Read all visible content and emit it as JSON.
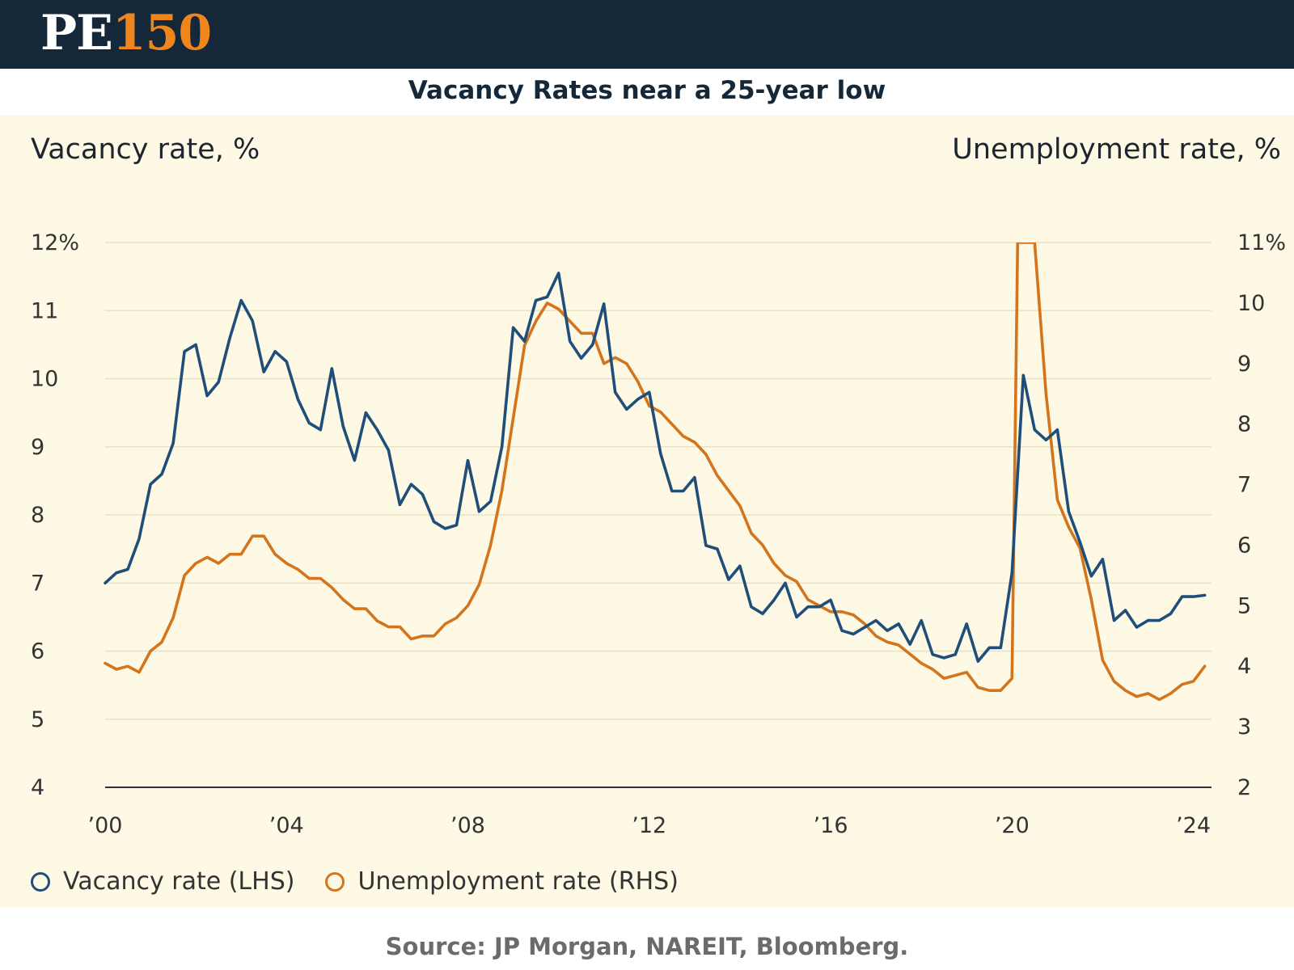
{
  "header": {
    "logo_pe": "PE",
    "logo_num": "150"
  },
  "title": "Vacancy Rates near a 25-year low",
  "source": "Source: JP Morgan, NAREIT, Bloomberg.",
  "colors": {
    "header_bg": "#14283a",
    "accent": "#f0851c",
    "panel_bg": "#fdf9e4",
    "vacancy": "#1f4e7a",
    "unemployment": "#d4741c"
  },
  "chart_data": {
    "type": "line",
    "left_axis_title": "Vacancy rate, %",
    "right_axis_title": "Unemployment rate, %",
    "x_ticks": [
      {
        "x": 2000,
        "label": "’00"
      },
      {
        "x": 2004,
        "label": "’04"
      },
      {
        "x": 2008,
        "label": "’08"
      },
      {
        "x": 2012,
        "label": "’12"
      },
      {
        "x": 2016,
        "label": "’16"
      },
      {
        "x": 2020,
        "label": "’20"
      },
      {
        "x": 2024,
        "label": "’24"
      }
    ],
    "xlim": [
      2000,
      2024.4
    ],
    "y_left": {
      "lim": [
        4,
        12
      ],
      "ticks": [
        {
          "v": 12,
          "label": "12%"
        },
        {
          "v": 11,
          "label": "11"
        },
        {
          "v": 10,
          "label": "10"
        },
        {
          "v": 9,
          "label": "9"
        },
        {
          "v": 8,
          "label": "8"
        },
        {
          "v": 7,
          "label": "7"
        },
        {
          "v": 6,
          "label": "6"
        },
        {
          "v": 5,
          "label": "5"
        },
        {
          "v": 4,
          "label": "4"
        }
      ]
    },
    "y_right": {
      "lim": [
        2,
        11
      ],
      "ticks": [
        {
          "v": 11,
          "label": "11%"
        },
        {
          "v": 10,
          "label": "10"
        },
        {
          "v": 9,
          "label": "9"
        },
        {
          "v": 8,
          "label": "8"
        },
        {
          "v": 7,
          "label": "7"
        },
        {
          "v": 6,
          "label": "6"
        },
        {
          "v": 5,
          "label": "5"
        },
        {
          "v": 4,
          "label": "4"
        },
        {
          "v": 3,
          "label": "3"
        },
        {
          "v": 2,
          "label": "2"
        }
      ]
    },
    "grid": true,
    "legend_position": "bottom-left",
    "series": [
      {
        "name": "Vacancy rate (LHS)",
        "axis": "left",
        "color": "#1f4e7a",
        "x": [
          2000.0,
          2000.25,
          2000.5,
          2000.75,
          2001.0,
          2001.25,
          2001.5,
          2001.75,
          2002.0,
          2002.25,
          2002.5,
          2002.75,
          2003.0,
          2003.25,
          2003.5,
          2003.75,
          2004.0,
          2004.25,
          2004.5,
          2004.75,
          2005.0,
          2005.25,
          2005.5,
          2005.75,
          2006.0,
          2006.25,
          2006.5,
          2006.75,
          2007.0,
          2007.25,
          2007.5,
          2007.75,
          2008.0,
          2008.25,
          2008.5,
          2008.75,
          2009.0,
          2009.25,
          2009.5,
          2009.75,
          2010.0,
          2010.25,
          2010.5,
          2010.75,
          2011.0,
          2011.25,
          2011.5,
          2011.75,
          2012.0,
          2012.25,
          2012.5,
          2012.75,
          2013.0,
          2013.25,
          2013.5,
          2013.75,
          2014.0,
          2014.25,
          2014.5,
          2014.75,
          2015.0,
          2015.25,
          2015.5,
          2015.75,
          2016.0,
          2016.25,
          2016.5,
          2016.75,
          2017.0,
          2017.25,
          2017.5,
          2017.75,
          2018.0,
          2018.25,
          2018.5,
          2018.75,
          2019.0,
          2019.25,
          2019.5,
          2019.75,
          2020.0,
          2020.25,
          2020.5,
          2020.75,
          2021.0,
          2021.25,
          2021.5,
          2021.75,
          2022.0,
          2022.25,
          2022.5,
          2022.75,
          2023.0,
          2023.25,
          2023.5,
          2023.75,
          2024.0,
          2024.25
        ],
        "values": [
          7.0,
          7.15,
          7.2,
          7.65,
          8.45,
          8.6,
          9.05,
          10.4,
          10.5,
          9.75,
          9.95,
          10.6,
          11.15,
          10.85,
          10.1,
          10.4,
          10.25,
          9.7,
          9.35,
          9.25,
          10.15,
          9.3,
          8.8,
          9.5,
          9.25,
          8.95,
          8.15,
          8.45,
          8.3,
          7.9,
          7.8,
          7.85,
          8.8,
          8.05,
          8.2,
          9.0,
          10.75,
          10.55,
          11.15,
          11.2,
          11.55,
          10.55,
          10.3,
          10.5,
          11.1,
          9.8,
          9.55,
          9.7,
          9.8,
          8.9,
          8.35,
          8.35,
          8.55,
          7.55,
          7.5,
          7.05,
          7.25,
          6.65,
          6.55,
          6.75,
          7.0,
          6.5,
          6.65,
          6.65,
          6.75,
          6.3,
          6.25,
          6.35,
          6.45,
          6.3,
          6.4,
          6.1,
          6.45,
          5.95,
          5.9,
          5.95,
          6.4,
          5.85,
          6.05,
          6.05,
          7.15,
          10.05,
          9.25,
          9.1,
          9.25,
          8.05,
          7.6,
          7.1,
          7.35,
          6.45,
          6.6,
          6.35,
          6.45,
          6.45,
          6.55,
          6.8,
          6.8,
          6.82
        ]
      },
      {
        "name": "Unemployment rate (RHS)",
        "axis": "right",
        "color": "#d4741c",
        "x": [
          2000.0,
          2000.25,
          2000.5,
          2000.75,
          2001.0,
          2001.25,
          2001.5,
          2001.75,
          2002.0,
          2002.25,
          2002.5,
          2002.75,
          2003.0,
          2003.25,
          2003.5,
          2003.75,
          2004.0,
          2004.25,
          2004.5,
          2004.75,
          2005.0,
          2005.25,
          2005.5,
          2005.75,
          2006.0,
          2006.25,
          2006.5,
          2006.75,
          2007.0,
          2007.25,
          2007.5,
          2007.75,
          2008.0,
          2008.25,
          2008.5,
          2008.75,
          2009.0,
          2009.25,
          2009.5,
          2009.75,
          2010.0,
          2010.25,
          2010.5,
          2010.75,
          2011.0,
          2011.25,
          2011.5,
          2011.75,
          2012.0,
          2012.25,
          2012.5,
          2012.75,
          2013.0,
          2013.25,
          2013.5,
          2013.75,
          2014.0,
          2014.25,
          2014.5,
          2014.75,
          2015.0,
          2015.25,
          2015.5,
          2015.75,
          2016.0,
          2016.25,
          2016.5,
          2016.75,
          2017.0,
          2017.25,
          2017.5,
          2017.75,
          2018.0,
          2018.25,
          2018.5,
          2018.75,
          2019.0,
          2019.25,
          2019.5,
          2019.75,
          2020.0,
          2020.125,
          2020.25,
          2020.375,
          2020.5,
          2020.75,
          2021.0,
          2021.25,
          2021.5,
          2021.75,
          2022.0,
          2022.25,
          2022.5,
          2022.75,
          2023.0,
          2023.25,
          2023.5,
          2023.75,
          2024.0,
          2024.25
        ],
        "values": [
          4.05,
          3.95,
          4.0,
          3.9,
          4.25,
          4.4,
          4.8,
          5.5,
          5.7,
          5.8,
          5.7,
          5.85,
          5.85,
          6.15,
          6.15,
          5.85,
          5.7,
          5.6,
          5.45,
          5.45,
          5.3,
          5.1,
          4.95,
          4.95,
          4.75,
          4.65,
          4.65,
          4.45,
          4.5,
          4.5,
          4.7,
          4.8,
          5.0,
          5.35,
          6.0,
          6.9,
          8.1,
          9.3,
          9.7,
          10.0,
          9.9,
          9.7,
          9.5,
          9.5,
          9.0,
          9.1,
          9.0,
          8.7,
          8.3,
          8.2,
          8.0,
          7.8,
          7.7,
          7.5,
          7.15,
          6.9,
          6.65,
          6.2,
          6.0,
          5.7,
          5.5,
          5.4,
          5.1,
          5.0,
          4.9,
          4.9,
          4.85,
          4.7,
          4.5,
          4.4,
          4.35,
          4.2,
          4.05,
          3.95,
          3.8,
          3.85,
          3.9,
          3.65,
          3.6,
          3.6,
          3.8,
          11.0,
          11.0,
          11.0,
          11.0,
          8.5,
          6.75,
          6.3,
          5.95,
          5.1,
          4.1,
          3.75,
          3.6,
          3.5,
          3.55,
          3.45,
          3.55,
          3.7,
          3.75,
          4.0
        ]
      }
    ]
  }
}
